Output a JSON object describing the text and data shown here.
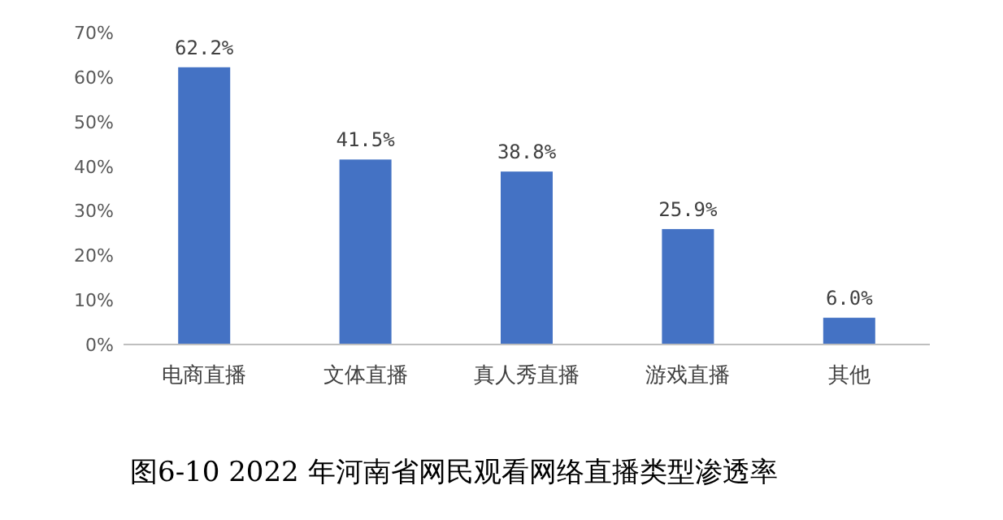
{
  "chart_data": {
    "type": "bar",
    "title": "图6-10 2022 年河南省网民观看网络直播类型渗透率",
    "categories": [
      "电商直播",
      "文体直播",
      "真人秀直播",
      "游戏直播",
      "其他"
    ],
    "values": [
      62.2,
      41.5,
      38.8,
      25.9,
      6.0
    ],
    "value_labels": [
      "62.2%",
      "41.5%",
      "38.8%",
      "25.9%",
      "6.0%"
    ],
    "color": "#4472c4",
    "ylim": [
      0,
      70
    ],
    "yticks": [
      {
        "value": 0,
        "label": "0%"
      },
      {
        "value": 10,
        "label": "10%"
      },
      {
        "value": 20,
        "label": "20%"
      },
      {
        "value": 30,
        "label": "30%"
      },
      {
        "value": 40,
        "label": "40%"
      },
      {
        "value": 50,
        "label": "50%"
      },
      {
        "value": 60,
        "label": "60%"
      },
      {
        "value": 70,
        "label": "70%"
      }
    ]
  }
}
